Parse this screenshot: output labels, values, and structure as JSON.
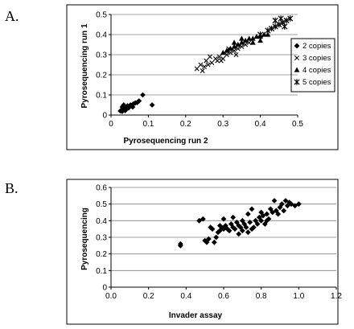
{
  "chart_data": [
    {
      "panel": "A.",
      "type": "scatter",
      "xlabel": "Pyrosequencing run 2",
      "ylabel": "Pyrosequencing run 1",
      "xlim": [
        0,
        0.5
      ],
      "ylim": [
        0,
        0.5
      ],
      "xticks": [
        "0",
        "0.1",
        "0.2",
        "0.3",
        "0.4",
        "0.5"
      ],
      "yticks": [
        "0",
        "0.1",
        "0.2",
        "0.3",
        "0.4",
        "0.5"
      ],
      "grid": "horizontal",
      "legend": "right",
      "series": [
        {
          "name": "2 copies",
          "marker": "diamond",
          "color": "#000000",
          "points": [
            [
              0.025,
              0.02
            ],
            [
              0.028,
              0.025
            ],
            [
              0.03,
              0.018
            ],
            [
              0.032,
              0.03
            ],
            [
              0.035,
              0.028
            ],
            [
              0.037,
              0.035
            ],
            [
              0.04,
              0.03
            ],
            [
              0.042,
              0.038
            ],
            [
              0.045,
              0.04
            ],
            [
              0.047,
              0.035
            ],
            [
              0.05,
              0.045
            ],
            [
              0.052,
              0.05
            ],
            [
              0.055,
              0.048
            ],
            [
              0.06,
              0.055
            ],
            [
              0.065,
              0.06
            ],
            [
              0.07,
              0.062
            ],
            [
              0.075,
              0.07
            ],
            [
              0.085,
              0.1
            ],
            [
              0.11,
              0.05
            ],
            [
              0.03,
              0.04
            ],
            [
              0.038,
              0.022
            ],
            [
              0.044,
              0.046
            ],
            [
              0.058,
              0.04
            ],
            [
              0.034,
              0.05
            ]
          ]
        },
        {
          "name": "3 copies",
          "marker": "cross",
          "color": "#000000",
          "points": [
            [
              0.23,
              0.23
            ],
            [
              0.24,
              0.25
            ],
            [
              0.25,
              0.24
            ],
            [
              0.255,
              0.27
            ],
            [
              0.26,
              0.25
            ],
            [
              0.27,
              0.26
            ],
            [
              0.28,
              0.28
            ],
            [
              0.285,
              0.27
            ],
            [
              0.29,
              0.29
            ],
            [
              0.3,
              0.28
            ],
            [
              0.31,
              0.3
            ],
            [
              0.32,
              0.31
            ],
            [
              0.33,
              0.32
            ],
            [
              0.34,
              0.33
            ],
            [
              0.35,
              0.34
            ],
            [
              0.36,
              0.35
            ],
            [
              0.37,
              0.36
            ],
            [
              0.245,
              0.22
            ],
            [
              0.265,
              0.29
            ],
            [
              0.295,
              0.27
            ],
            [
              0.315,
              0.33
            ],
            [
              0.335,
              0.3
            ]
          ]
        },
        {
          "name": "4 copies",
          "marker": "triangle",
          "color": "#000000",
          "points": [
            [
              0.3,
              0.31
            ],
            [
              0.31,
              0.32
            ],
            [
              0.32,
              0.33
            ],
            [
              0.33,
              0.34
            ],
            [
              0.34,
              0.35
            ],
            [
              0.35,
              0.36
            ],
            [
              0.36,
              0.37
            ],
            [
              0.37,
              0.38
            ],
            [
              0.38,
              0.38
            ],
            [
              0.39,
              0.39
            ],
            [
              0.4,
              0.39
            ],
            [
              0.41,
              0.4
            ],
            [
              0.42,
              0.4
            ],
            [
              0.35,
              0.38
            ],
            [
              0.33,
              0.36
            ],
            [
              0.38,
              0.36
            ],
            [
              0.4,
              0.37
            ]
          ]
        },
        {
          "name": "5 copies",
          "marker": "star",
          "color": "#000000",
          "points": [
            [
              0.4,
              0.4
            ],
            [
              0.42,
              0.42
            ],
            [
              0.43,
              0.43
            ],
            [
              0.44,
              0.44
            ],
            [
              0.45,
              0.45
            ],
            [
              0.46,
              0.46
            ],
            [
              0.47,
              0.47
            ],
            [
              0.48,
              0.48
            ],
            [
              0.465,
              0.44
            ],
            [
              0.44,
              0.47
            ],
            [
              0.455,
              0.48
            ]
          ]
        }
      ]
    },
    {
      "panel": "B.",
      "type": "scatter",
      "xlabel": "Invader assay",
      "ylabel": "Pyrosequencing",
      "xlim": [
        0,
        1.2
      ],
      "ylim": [
        0,
        0.6
      ],
      "xticks": [
        "0.0",
        "0.2",
        "0.4",
        "0.6",
        "0.8",
        "1.0",
        "1.2"
      ],
      "yticks": [
        "0",
        "0.1",
        "0.2",
        "0.3",
        "0.4",
        "0.5",
        "0.6"
      ],
      "grid": "horizontal",
      "series": [
        {
          "name": "",
          "marker": "diamond",
          "color": "#000000",
          "points": [
            [
              0.37,
              0.25
            ],
            [
              0.37,
              0.26
            ],
            [
              0.47,
              0.4
            ],
            [
              0.49,
              0.41
            ],
            [
              0.5,
              0.28
            ],
            [
              0.51,
              0.27
            ],
            [
              0.52,
              0.29
            ],
            [
              0.53,
              0.36
            ],
            [
              0.54,
              0.35
            ],
            [
              0.55,
              0.27
            ],
            [
              0.56,
              0.3
            ],
            [
              0.57,
              0.33
            ],
            [
              0.58,
              0.34
            ],
            [
              0.59,
              0.36
            ],
            [
              0.6,
              0.35
            ],
            [
              0.6,
              0.41
            ],
            [
              0.61,
              0.37
            ],
            [
              0.62,
              0.35
            ],
            [
              0.63,
              0.34
            ],
            [
              0.64,
              0.38
            ],
            [
              0.65,
              0.36
            ],
            [
              0.65,
              0.42
            ],
            [
              0.66,
              0.35
            ],
            [
              0.67,
              0.39
            ],
            [
              0.68,
              0.37
            ],
            [
              0.69,
              0.36
            ],
            [
              0.7,
              0.4
            ],
            [
              0.7,
              0.34
            ],
            [
              0.71,
              0.38
            ],
            [
              0.72,
              0.36
            ],
            [
              0.73,
              0.33
            ],
            [
              0.73,
              0.44
            ],
            [
              0.74,
              0.39
            ],
            [
              0.75,
              0.35
            ],
            [
              0.75,
              0.47
            ],
            [
              0.76,
              0.36
            ],
            [
              0.77,
              0.4
            ],
            [
              0.78,
              0.38
            ],
            [
              0.79,
              0.42
            ],
            [
              0.8,
              0.45
            ],
            [
              0.8,
              0.4
            ],
            [
              0.81,
              0.43
            ],
            [
              0.82,
              0.38
            ],
            [
              0.83,
              0.44
            ],
            [
              0.84,
              0.41
            ],
            [
              0.85,
              0.47
            ],
            [
              0.86,
              0.45
            ],
            [
              0.87,
              0.52
            ],
            [
              0.88,
              0.46
            ],
            [
              0.89,
              0.44
            ],
            [
              0.9,
              0.48
            ],
            [
              0.91,
              0.5
            ],
            [
              0.92,
              0.46
            ],
            [
              0.93,
              0.52
            ],
            [
              0.94,
              0.49
            ],
            [
              0.95,
              0.51
            ],
            [
              0.96,
              0.5
            ],
            [
              0.98,
              0.49
            ],
            [
              1.0,
              0.5
            ],
            [
              0.68,
              0.32
            ],
            [
              0.58,
              0.37
            ],
            [
              0.83,
              0.4
            ]
          ]
        }
      ]
    }
  ]
}
